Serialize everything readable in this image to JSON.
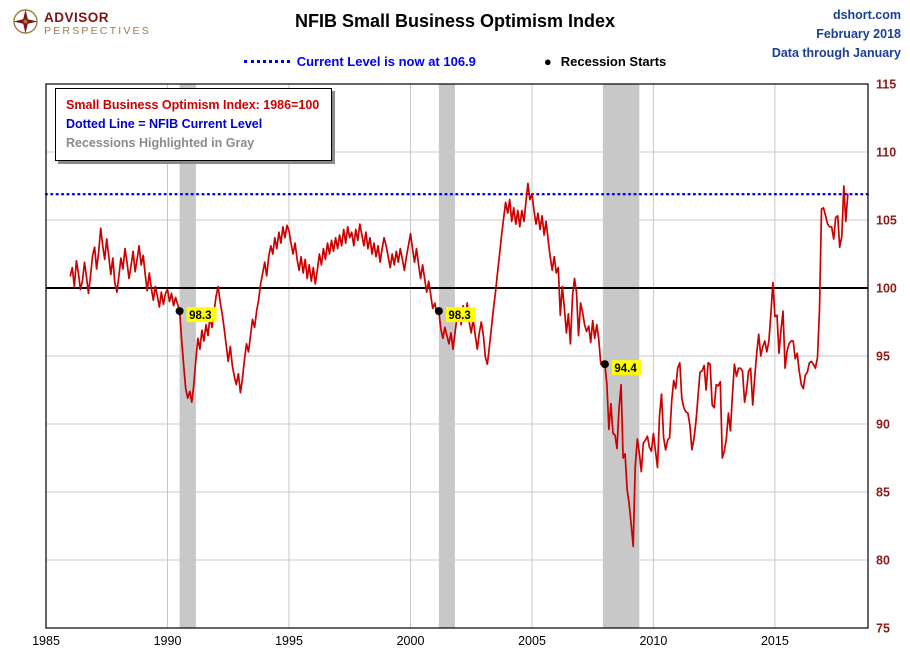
{
  "header": {
    "logo": {
      "line1": "ADVISOR",
      "line2": "PERSPECTIVES"
    },
    "title": "NFIB Small Business Optimism Index",
    "corner": {
      "line1": "dshort.com",
      "line2": "February 2018",
      "line3": "Data through January"
    },
    "subtitle": {
      "current_level_label": "Current Level is now at 106.9",
      "recession_label": "Recession Starts"
    }
  },
  "legend_box": {
    "line1": "Small Business Optimism Index: 1986=100",
    "line2": "Dotted Line = NFIB Current Level",
    "line3": "Recessions Highlighted in Gray"
  },
  "colors": {
    "series_red": "#CC0000",
    "current_level_blue": "#0000EE",
    "hundred_line_black": "#000000",
    "recession_gray": "#C8C8C8",
    "grid_gray": "#C9C9C9",
    "plot_border": "#000000",
    "axis_y_label": "#8B1A1A",
    "axis_x_label": "#000000",
    "marker_label_bg": "#FFFF00",
    "marker_dot": "#000000"
  },
  "chart_data": {
    "type": "line",
    "title": "NFIB Small Business Optimism Index",
    "xlabel": "",
    "ylabel": "",
    "xlim": [
      1985,
      2018.83
    ],
    "ylim": [
      75,
      115
    ],
    "x_ticks": [
      1985,
      1990,
      1995,
      2000,
      2005,
      2010,
      2015
    ],
    "y_ticks": [
      75,
      80,
      85,
      90,
      95,
      100,
      105,
      110,
      115
    ],
    "grid": true,
    "current_level": 106.9,
    "reference_lines": [
      {
        "value": 100,
        "style": "solid",
        "color": "#000000",
        "label": "1986=100 baseline"
      },
      {
        "value": 106.9,
        "style": "dotted",
        "color": "#0000EE",
        "label": "NFIB Current Level"
      }
    ],
    "recession_bands": [
      [
        1990.5,
        1991.17
      ],
      [
        2001.17,
        2001.83
      ],
      [
        2007.92,
        2009.42
      ]
    ],
    "markers": [
      {
        "x": 1990.5,
        "y": 98.3,
        "label": "98.3"
      },
      {
        "x": 2001.17,
        "y": 98.3,
        "label": "98.3"
      },
      {
        "x": 2008.0,
        "y": 94.4,
        "label": "94.4"
      }
    ],
    "series": {
      "name": "Small Business Optimism Index (1986=100)",
      "color": "#CC0000",
      "start_year": 1986,
      "frequency": "monthly",
      "values": [
        100.9,
        101.5,
        100.1,
        102.0,
        101.1,
        99.9,
        100.5,
        101.9,
        100.8,
        99.6,
        100.9,
        102.4,
        103.0,
        101.4,
        102.6,
        104.4,
        103.1,
        102.1,
        103.6,
        102.3,
        101.0,
        102.2,
        100.4,
        99.7,
        100.9,
        102.2,
        101.4,
        102.9,
        101.9,
        100.7,
        101.6,
        102.7,
        101.2,
        102.1,
        103.1,
        101.7,
        102.4,
        101.0,
        99.8,
        101.1,
        100.0,
        99.1,
        100.1,
        99.4,
        98.6,
        99.7,
        98.8,
        99.6,
        99.9,
        99.0,
        99.6,
        98.7,
        99.3,
        98.8,
        98.3,
        96.1,
        94.3,
        92.6,
        91.9,
        92.4,
        91.6,
        92.9,
        94.7,
        96.3,
        95.5,
        96.9,
        96.1,
        97.3,
        96.5,
        97.9,
        97.1,
        98.3,
        99.4,
        100.1,
        99.0,
        98.1,
        97.0,
        95.8,
        94.6,
        95.7,
        94.3,
        93.5,
        92.9,
        93.7,
        92.3,
        93.3,
        94.7,
        95.9,
        95.3,
        96.5,
        97.7,
        97.1,
        98.3,
        99.1,
        100.3,
        101.1,
        101.9,
        100.9,
        102.3,
        103.1,
        102.5,
        103.7,
        102.9,
        104.1,
        103.3,
        104.5,
        103.7,
        104.6,
        104.2,
        103.3,
        102.5,
        103.3,
        102.1,
        101.3,
        102.3,
        101.1,
        102.1,
        100.7,
        101.7,
        100.5,
        101.5,
        100.3,
        101.3,
        102.5,
        101.7,
        102.9,
        102.1,
        103.3,
        102.5,
        103.5,
        102.7,
        103.7,
        102.9,
        103.9,
        103.1,
        104.3,
        103.3,
        104.5,
        103.7,
        104.1,
        103.1,
        104.3,
        103.5,
        104.7,
        103.9,
        103.1,
        104.1,
        102.9,
        103.7,
        102.5,
        103.3,
        102.3,
        103.1,
        101.9,
        102.9,
        103.7,
        103.1,
        102.3,
        101.5,
        102.5,
        101.7,
        102.7,
        101.9,
        102.9,
        102.1,
        101.3,
        102.3,
        103.1,
        104.0,
        102.9,
        101.9,
        102.9,
        101.7,
        100.7,
        101.7,
        100.7,
        99.7,
        100.5,
        99.5,
        98.5,
        98.9,
        98.1,
        98.3,
        97.0,
        96.3,
        97.1,
        96.5,
        95.9,
        96.7,
        95.5,
        96.7,
        97.9,
        98.5,
        97.3,
        98.7,
        97.7,
        98.9,
        97.5,
        96.7,
        97.7,
        96.5,
        95.5,
        96.7,
        97.5,
        96.5,
        94.9,
        94.4,
        95.7,
        97.1,
        98.5,
        99.7,
        101.1,
        102.5,
        103.9,
        105.1,
        106.3,
        105.5,
        106.5,
        104.9,
        105.9,
        104.7,
        105.7,
        104.5,
        105.7,
        104.9,
        106.3,
        107.7,
        106.5,
        106.9,
        105.7,
        104.7,
        105.5,
        104.3,
        105.3,
        103.9,
        104.9,
        103.5,
        102.3,
        101.3,
        102.3,
        101.1,
        101.5,
        98.0,
        100.1,
        98.5,
        96.7,
        98.1,
        95.9,
        99.4,
        100.7,
        99.7,
        96.5,
        98.9,
        98.2,
        97.3,
        96.8,
        97.2,
        96.0,
        97.6,
        96.3,
        97.3,
        96.2,
        94.4,
        94.6,
        94.4,
        92.9,
        89.6,
        91.5,
        89.3,
        89.2,
        88.2,
        91.1,
        92.9,
        87.5,
        87.8,
        85.2,
        84.1,
        82.6,
        81.0,
        86.8,
        88.9,
        87.9,
        86.5,
        88.6,
        88.8,
        89.1,
        88.3,
        88.0,
        89.3,
        88.0,
        86.8,
        90.6,
        92.2,
        89.0,
        88.1,
        88.8,
        89.0,
        91.7,
        93.2,
        92.6,
        94.1,
        94.5,
        91.9,
        91.2,
        90.9,
        90.8,
        89.9,
        88.1,
        88.9,
        90.2,
        92.0,
        93.8,
        93.9,
        94.3,
        92.5,
        94.5,
        94.4,
        91.4,
        91.2,
        92.9,
        92.8,
        93.1,
        87.5,
        88.0,
        88.9,
        90.8,
        89.5,
        92.1,
        94.4,
        93.5,
        94.1,
        94.1,
        93.9,
        91.6,
        92.5,
        93.9,
        94.1,
        91.4,
        93.4,
        95.2,
        96.6,
        95.0,
        95.7,
        96.1,
        95.3,
        96.1,
        98.1,
        100.4,
        97.9,
        98.0,
        95.2,
        96.9,
        98.3,
        94.1,
        95.4,
        95.9,
        96.1,
        96.1,
        94.8,
        95.2,
        93.9,
        92.9,
        92.6,
        93.6,
        93.8,
        94.5,
        94.6,
        94.4,
        94.1,
        94.9,
        98.4,
        105.8,
        105.9,
        105.3,
        104.7,
        104.5,
        104.5,
        103.6,
        105.2,
        105.3,
        103.0,
        103.8,
        107.5,
        104.9,
        106.9
      ]
    }
  }
}
